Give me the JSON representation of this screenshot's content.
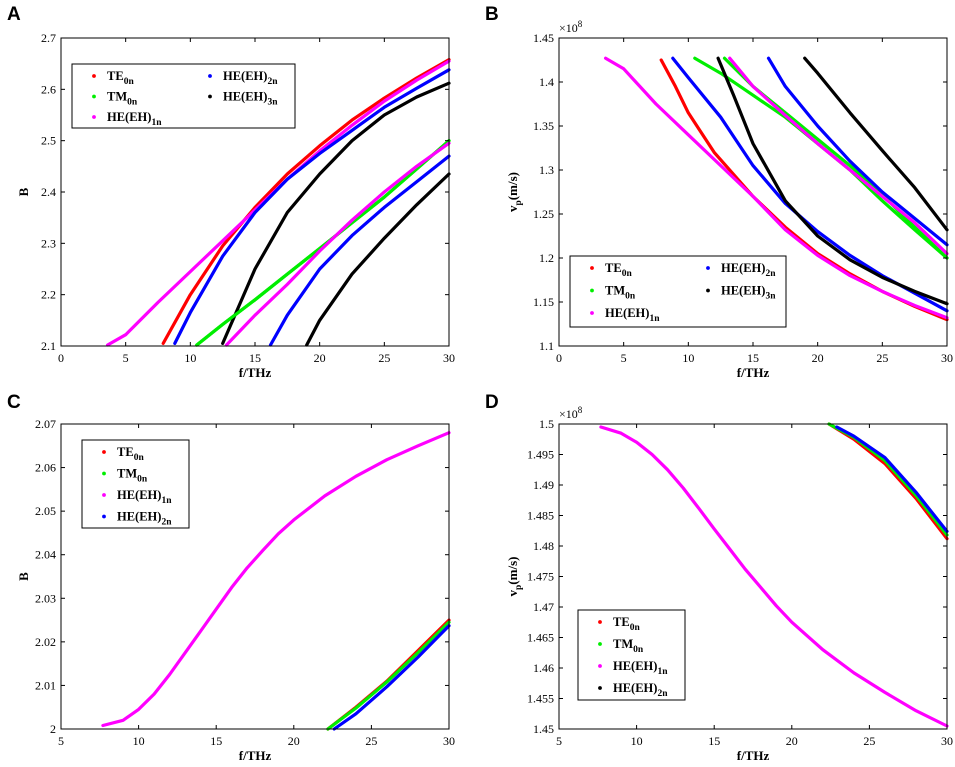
{
  "chart_data": [
    {
      "type": "line",
      "panel_label": "A",
      "xlabel": "f/THz",
      "ylabel": "B",
      "xlim": [
        0,
        30
      ],
      "ylim": [
        2.1,
        2.7
      ],
      "xticks": [
        "0",
        "5",
        "10",
        "15",
        "20",
        "25",
        "30"
      ],
      "yticks": [
        "2.1",
        "2.2",
        "2.3",
        "2.4",
        "2.5",
        "2.6",
        "2.7"
      ],
      "legend": {
        "columns": 2,
        "placement": "top-left"
      },
      "series": [
        {
          "name": "TE",
          "sub": "0n",
          "color": "#ff0000",
          "x": [
            7.9,
            10,
            12.5,
            15,
            17.5,
            20,
            22.5,
            25,
            27.5,
            30
          ],
          "y": [
            2.105,
            2.2,
            2.295,
            2.37,
            2.435,
            2.49,
            2.54,
            2.583,
            2.622,
            2.658
          ]
        },
        {
          "name": "TM",
          "sub": "0n",
          "color": "#00ee00",
          "x": [
            10.5,
            12.5,
            15,
            17.5,
            20,
            22.5,
            25,
            27.5,
            30
          ],
          "y": [
            2.102,
            2.142,
            2.19,
            2.24,
            2.29,
            2.34,
            2.39,
            2.445,
            2.5
          ]
        },
        {
          "name": "HE(EH)",
          "sub": "1n",
          "color": "#ff00ff",
          "x": [
            3.6,
            5,
            7.5,
            10,
            12.5,
            15,
            17.5,
            20,
            22.5,
            25,
            27.5,
            30
          ],
          "y": [
            2.102,
            2.122,
            2.185,
            2.245,
            2.305,
            2.365,
            2.425,
            2.48,
            2.53,
            2.577,
            2.618,
            2.655
          ]
        },
        {
          "name": "HE(EH)",
          "sub": "2n",
          "color": "#0000ff",
          "x": [
            8.8,
            10,
            12.5,
            15,
            17.5,
            20,
            22.5,
            25,
            27.5,
            30
          ],
          "y": [
            2.105,
            2.165,
            2.275,
            2.36,
            2.425,
            2.475,
            2.52,
            2.565,
            2.602,
            2.638
          ]
        },
        {
          "name": "HE(EH)",
          "sub": "3n",
          "color": "#000000",
          "x": [
            12.5,
            15,
            17.5,
            20,
            22.5,
            25,
            27.5,
            30
          ],
          "y": [
            2.105,
            2.25,
            2.36,
            2.435,
            2.5,
            2.55,
            2.585,
            2.612
          ]
        },
        {
          "name": "TM",
          "sub": "0n",
          "color": "#00ee00",
          "legend": false,
          "x": [
            10.5,
            12.5,
            15,
            17.5,
            20,
            22.5,
            25,
            27.5,
            30
          ],
          "y": [
            2.102,
            2.142,
            2.19,
            2.24,
            2.29,
            2.34,
            2.39,
            2.445,
            2.5
          ]
        },
        {
          "name": "HE(EH)",
          "sub": "1n",
          "color": "#ff00ff",
          "legend": false,
          "x": [
            12.8,
            15,
            17.5,
            20,
            22.5,
            25,
            27.5,
            30
          ],
          "y": [
            2.102,
            2.16,
            2.22,
            2.285,
            2.345,
            2.4,
            2.45,
            2.495
          ]
        },
        {
          "name": "HE(EH)",
          "sub": "2n",
          "color": "#0000ff",
          "legend": false,
          "x": [
            16.2,
            17.5,
            20,
            22.5,
            25,
            27.5,
            30
          ],
          "y": [
            2.102,
            2.16,
            2.25,
            2.315,
            2.37,
            2.42,
            2.47
          ]
        },
        {
          "name": "HE(EH)",
          "sub": "3n",
          "color": "#000000",
          "legend": false,
          "x": [
            19.0,
            20,
            22.5,
            25,
            27.5,
            30
          ],
          "y": [
            2.102,
            2.15,
            2.24,
            2.31,
            2.375,
            2.435
          ]
        }
      ]
    },
    {
      "type": "line",
      "panel_label": "B",
      "xlabel": "f/THz",
      "ylabel": "v",
      "ylabel_sub": "p",
      "ylabel_suffix": "(m/s)",
      "exponent": "×10",
      "exponent_power": "8",
      "xlim": [
        0,
        30
      ],
      "ylim": [
        1.1,
        1.45
      ],
      "xticks": [
        "0",
        "5",
        "10",
        "15",
        "20",
        "25",
        "30"
      ],
      "yticks": [
        "1.1",
        "1.15",
        "1.2",
        "1.25",
        "1.3",
        "1.35",
        "1.4",
        "1.45"
      ],
      "legend": {
        "columns": 2,
        "placement": "bottom-left"
      },
      "series": [
        {
          "name": "TE",
          "sub": "0n",
          "color": "#ff0000",
          "x": [
            7.9,
            9,
            10,
            12,
            15,
            17.5,
            20,
            22.5,
            25,
            27.5,
            30
          ],
          "y": [
            1.425,
            1.395,
            1.365,
            1.32,
            1.27,
            1.235,
            1.205,
            1.182,
            1.162,
            1.145,
            1.13
          ]
        },
        {
          "name": "TM",
          "sub": "0n",
          "color": "#00ee00",
          "x": [
            10.5,
            12.5,
            15,
            17.5,
            20,
            22.5,
            25,
            27.5,
            30
          ],
          "y": [
            1.427,
            1.41,
            1.385,
            1.36,
            1.33,
            1.3,
            1.265,
            1.232,
            1.2
          ]
        },
        {
          "name": "HE(EH)",
          "sub": "1n",
          "color": "#ff00ff",
          "x": [
            3.6,
            5,
            7.5,
            10,
            12.5,
            15,
            17.5,
            20,
            22.5,
            25,
            27.5,
            30
          ],
          "y": [
            1.427,
            1.415,
            1.375,
            1.34,
            1.305,
            1.27,
            1.232,
            1.203,
            1.18,
            1.162,
            1.146,
            1.132
          ]
        },
        {
          "name": "HE(EH)",
          "sub": "2n",
          "color": "#0000ff",
          "x": [
            8.8,
            10,
            12.5,
            15,
            17.5,
            20,
            22.5,
            25,
            27.5,
            30
          ],
          "y": [
            1.427,
            1.405,
            1.36,
            1.305,
            1.262,
            1.23,
            1.203,
            1.18,
            1.16,
            1.14
          ]
        },
        {
          "name": "HE(EH)",
          "sub": "3n",
          "color": "#000000",
          "x": [
            12.3,
            13.5,
            15,
            17.5,
            20,
            22.5,
            25,
            27.5,
            30
          ],
          "y": [
            1.427,
            1.385,
            1.33,
            1.265,
            1.225,
            1.198,
            1.178,
            1.162,
            1.148
          ]
        },
        {
          "name": "TM",
          "sub": "0n",
          "color": "#00ee00",
          "legend": false,
          "x": [
            12.8,
            15,
            17.5,
            20,
            22.5,
            25,
            27.5,
            30
          ],
          "y": [
            1.427,
            1.395,
            1.365,
            1.335,
            1.305,
            1.272,
            1.235,
            1.2
          ]
        },
        {
          "name": "HE(EH)",
          "sub": "1n",
          "color": "#ff00ff",
          "legend": false,
          "x": [
            13.2,
            15,
            17.5,
            20,
            22.5,
            25,
            27.5,
            30
          ],
          "y": [
            1.427,
            1.395,
            1.362,
            1.33,
            1.3,
            1.27,
            1.24,
            1.205
          ]
        },
        {
          "name": "HE(EH)",
          "sub": "2n",
          "color": "#0000ff",
          "legend": false,
          "x": [
            16.2,
            17.5,
            20,
            22.5,
            25,
            27.5,
            30
          ],
          "y": [
            1.427,
            1.395,
            1.35,
            1.31,
            1.275,
            1.245,
            1.215
          ]
        },
        {
          "name": "HE(EH)",
          "sub": "3n",
          "color": "#000000",
          "legend": false,
          "x": [
            19.0,
            20,
            22.5,
            25,
            27.5,
            30
          ],
          "y": [
            1.427,
            1.41,
            1.365,
            1.322,
            1.28,
            1.232
          ]
        }
      ]
    },
    {
      "type": "line",
      "panel_label": "C",
      "xlabel": "f/THz",
      "ylabel": "B",
      "xlim": [
        5,
        30
      ],
      "ylim": [
        2.0,
        2.07
      ],
      "xticks": [
        "5",
        "10",
        "15",
        "20",
        "25",
        "30"
      ],
      "yticks": [
        "2",
        "2.01",
        "2.02",
        "2.03",
        "2.04",
        "2.05",
        "2.06",
        "2.07"
      ],
      "legend": {
        "columns": 1,
        "placement": "top-left"
      },
      "series": [
        {
          "name": "TE",
          "sub": "0n",
          "color": "#ff0000",
          "x": [
            22.2,
            24,
            26,
            28,
            30
          ],
          "y": [
            2.0,
            2.005,
            2.011,
            2.018,
            2.025
          ]
        },
        {
          "name": "TM",
          "sub": "0n",
          "color": "#00ee00",
          "x": [
            22.2,
            24,
            26,
            28,
            30
          ],
          "y": [
            2.0,
            2.0048,
            2.0108,
            2.0175,
            2.0245
          ]
        },
        {
          "name": "HE(EH)",
          "sub": "1n",
          "color": "#ff00ff",
          "x": [
            7.7,
            9,
            10,
            11,
            12,
            13,
            14,
            15,
            16,
            17,
            18,
            19,
            20,
            22,
            24,
            26,
            28,
            30
          ],
          "y": [
            2.0008,
            2.002,
            2.0045,
            2.008,
            2.0125,
            2.0175,
            2.0225,
            2.0275,
            2.0325,
            2.037,
            2.041,
            2.0448,
            2.048,
            2.0535,
            2.058,
            2.0618,
            2.065,
            2.068
          ]
        },
        {
          "name": "HE(EH)",
          "sub": "2n",
          "color": "#0000ff",
          "x": [
            22.6,
            24,
            26,
            28,
            30
          ],
          "y": [
            2.0,
            2.0035,
            2.0097,
            2.0165,
            2.0237
          ]
        }
      ]
    },
    {
      "type": "line",
      "panel_label": "D",
      "xlabel": "f/THz",
      "ylabel": "v",
      "ylabel_sub": "p",
      "ylabel_suffix": "(m/s)",
      "exponent": "×10",
      "exponent_power": "8",
      "xlim": [
        5,
        30
      ],
      "ylim": [
        1.45,
        1.5
      ],
      "xticks": [
        "5",
        "10",
        "15",
        "20",
        "25",
        "30"
      ],
      "yticks": [
        "1.45",
        "1.455",
        "1.46",
        "1.465",
        "1.47",
        "1.475",
        "1.48",
        "1.485",
        "1.49",
        "1.495",
        "1.5"
      ],
      "legend": {
        "columns": 1,
        "placement": "bottom-left"
      },
      "series": [
        {
          "name": "TE",
          "sub": "0n",
          "color": "#ff0000",
          "x": [
            22.4,
            24,
            26,
            28,
            30
          ],
          "y": [
            1.5,
            1.4975,
            1.4935,
            1.4878,
            1.4812
          ]
        },
        {
          "name": "TM",
          "sub": "0n",
          "color": "#00ee00",
          "x": [
            22.4,
            24,
            26,
            28,
            30
          ],
          "y": [
            1.5,
            1.4978,
            1.494,
            1.4883,
            1.4818
          ]
        },
        {
          "name": "HE(EH)",
          "sub": "1n",
          "color": "#ff00ff",
          "x": [
            7.7,
            9,
            10,
            11,
            12,
            13,
            14,
            15,
            16,
            17,
            18,
            19,
            20,
            22,
            24,
            26,
            28,
            30
          ],
          "y": [
            1.4995,
            1.4985,
            1.497,
            1.495,
            1.4925,
            1.4895,
            1.4862,
            1.4828,
            1.4795,
            1.4762,
            1.4732,
            1.4702,
            1.4675,
            1.463,
            1.4592,
            1.456,
            1.453,
            1.4505
          ]
        },
        {
          "name": "HE(EH)",
          "sub": "2n",
          "color": "#0000ff",
          "x": [
            22.9,
            24,
            26,
            28,
            30
          ],
          "y": [
            1.4995,
            1.498,
            1.4945,
            1.4888,
            1.4824
          ]
        }
      ],
      "legend_marker_override": [
        "#ff0000",
        "#00ee00",
        "#ff00ff",
        "#000000"
      ]
    }
  ]
}
